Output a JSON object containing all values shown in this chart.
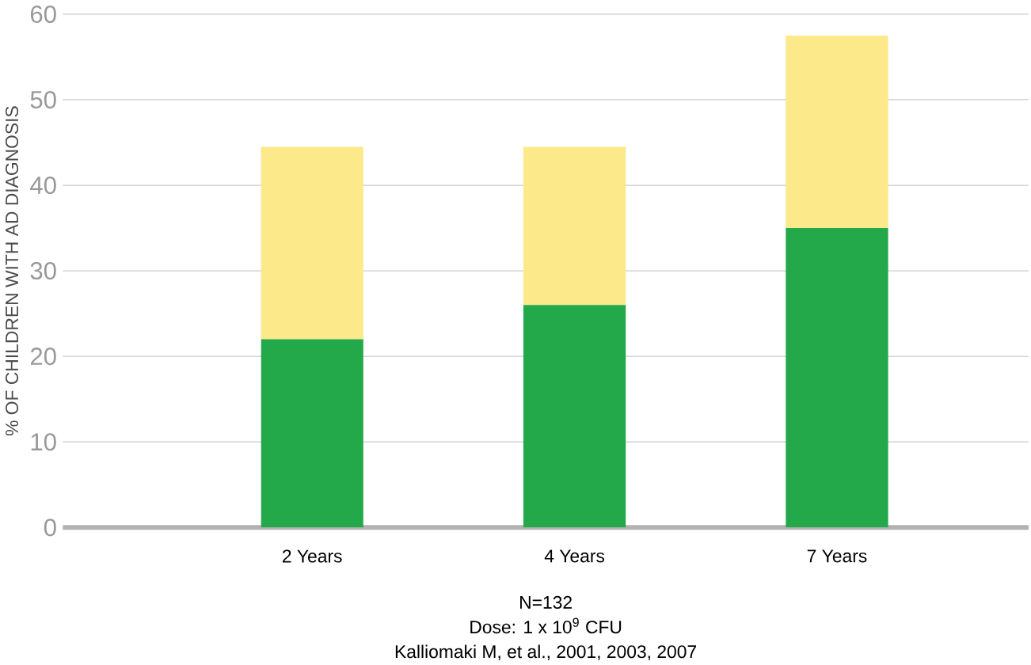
{
  "chart_data": {
    "type": "bar",
    "stacked": true,
    "ylabel": "% OF CHILDREN WITH AD DIAGNOSIS",
    "categories": [
      "2 Years",
      "4 Years",
      "7 Years"
    ],
    "series": [
      {
        "color": "#23a84a",
        "values": [
          22,
          26,
          35
        ]
      },
      {
        "color": "#fbe98a",
        "values": [
          22.5,
          18.5,
          22.5
        ]
      }
    ],
    "ylim": [
      0,
      60
    ],
    "yticks": [
      0,
      10,
      20,
      30,
      40,
      50,
      60
    ],
    "grid": "y",
    "annotations": [
      "N=132",
      "Dose: 1 x 10$^{9}$ CFU",
      "Kalliomaki M, et al., 2001, 2003, 2007"
    ]
  }
}
